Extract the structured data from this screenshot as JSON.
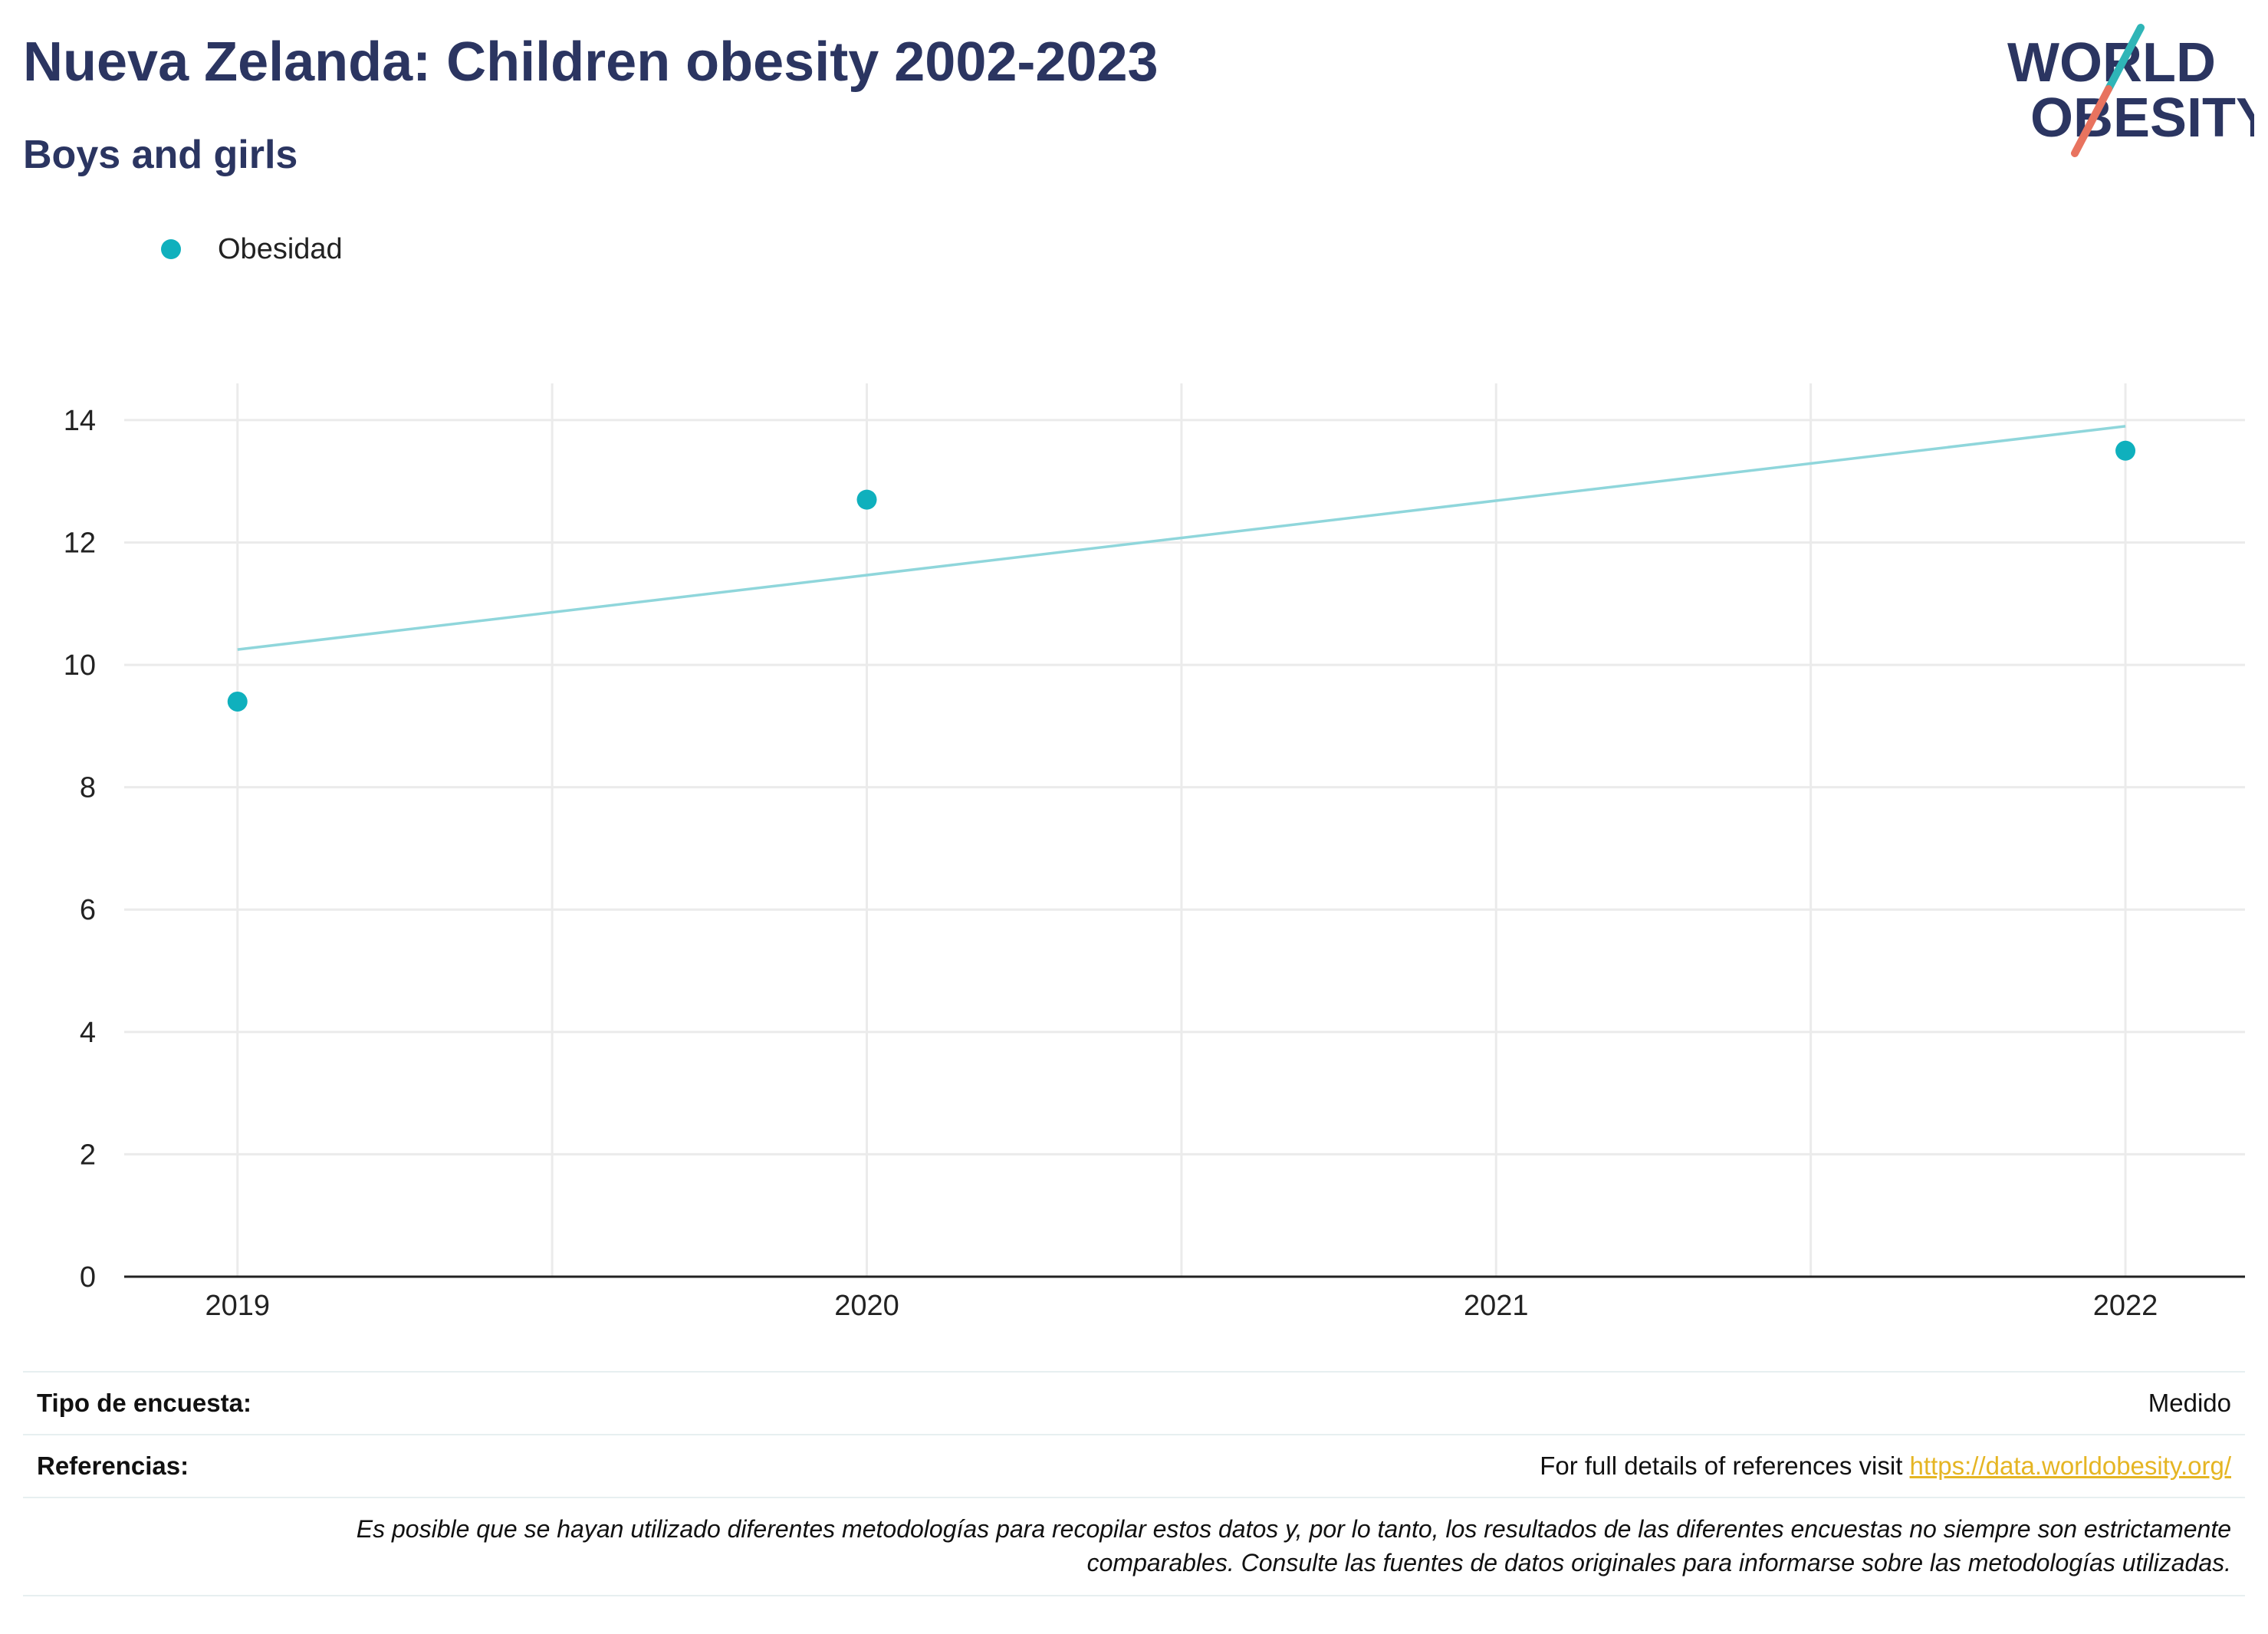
{
  "header": {
    "title": "Nueva Zelanda: Children obesity 2002-2023",
    "subtitle": "Boys and girls"
  },
  "logo": {
    "line1": "WORLD",
    "line2": "OBESITY",
    "text_color": "#2b3561",
    "stripe_color_top": "#2fb5b7",
    "stripe_color_bottom": "#e8735f"
  },
  "legend": {
    "items": [
      {
        "label": "Obesidad",
        "color": "#0fb0bd"
      }
    ]
  },
  "chart_data": {
    "type": "scatter",
    "x_ticks": [
      "2019",
      "2020",
      "2021",
      "2022"
    ],
    "y_ticks": [
      "0",
      "2",
      "4",
      "6",
      "8",
      "10",
      "12",
      "14"
    ],
    "ylim": [
      0,
      14.5
    ],
    "xlim": [
      2018.82,
      2022.19
    ],
    "grid": true,
    "legend_position": "top-left",
    "series": [
      {
        "name": "Obesidad",
        "color": "#0fb0bd",
        "points": [
          {
            "x": 2019,
            "y": 9.4
          },
          {
            "x": 2020,
            "y": 12.7
          },
          {
            "x": 2022,
            "y": 13.5
          }
        ]
      }
    ],
    "trendline": {
      "color": "#8fd6db",
      "start": {
        "x": 2019,
        "y": 10.25
      },
      "end": {
        "x": 2022,
        "y": 13.9
      }
    }
  },
  "info": {
    "survey_label": "Tipo de encuesta:",
    "survey_value": "Medido",
    "refs_label": "Referencias:",
    "refs_text": "For full details of references visit ",
    "refs_link": "https://data.worldobesity.org/",
    "note_line1": "Es posible que se hayan utilizado diferentes metodologías para recopilar estos datos y, por lo tanto, los resultados de las diferentes encuestas no siempre son estrictamente",
    "note_line2": "comparables. Consulte las fuentes de datos originales para informarse sobre las metodologías utilizadas."
  }
}
